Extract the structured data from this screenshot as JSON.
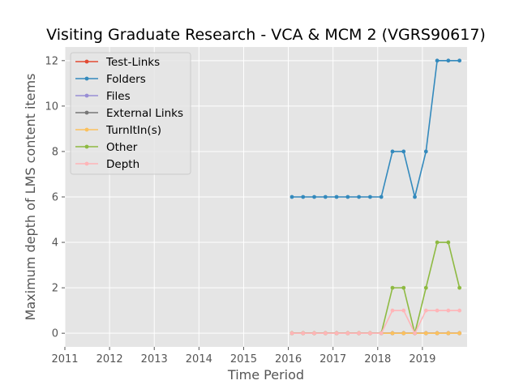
{
  "chart_data": {
    "type": "line",
    "title": "Visiting Graduate Research - VCA & MCM 2 (VGRS90617)",
    "xlabel": "Time Period",
    "ylabel": "Maximum depth of LMS content items",
    "xlim": [
      2011.0,
      2020.0
    ],
    "ylim": [
      -0.6,
      12.6
    ],
    "xticks": [
      2011,
      2012,
      2013,
      2014,
      2015,
      2016,
      2017,
      2018,
      2019
    ],
    "yticks": [
      0,
      2,
      4,
      6,
      8,
      10,
      12
    ],
    "grid": true,
    "legend_position": "top-left",
    "x": [
      2016.08,
      2016.33,
      2016.58,
      2016.83,
      2017.08,
      2017.33,
      2017.58,
      2017.83,
      2018.08,
      2018.33,
      2018.58,
      2018.83,
      2019.08,
      2019.33,
      2019.58,
      2019.83
    ],
    "series": [
      {
        "name": "Test-Links",
        "color": "#e24a33",
        "values": [
          0,
          0,
          0,
          0,
          0,
          0,
          0,
          0,
          0,
          0,
          0,
          0,
          0,
          0,
          0,
          0
        ]
      },
      {
        "name": "Folders",
        "color": "#348abd",
        "values": [
          6,
          6,
          6,
          6,
          6,
          6,
          6,
          6,
          6,
          8,
          8,
          6,
          8,
          12,
          12,
          12
        ]
      },
      {
        "name": "Files",
        "color": "#988ed5",
        "values": [
          0,
          0,
          0,
          0,
          0,
          0,
          0,
          0,
          0,
          0,
          0,
          0,
          0,
          0,
          0,
          0
        ]
      },
      {
        "name": "External Links",
        "color": "#777777",
        "values": [
          0,
          0,
          0,
          0,
          0,
          0,
          0,
          0,
          0,
          0,
          0,
          0,
          0,
          0,
          0,
          0
        ]
      },
      {
        "name": "TurnItIn(s)",
        "color": "#fbc15e",
        "values": [
          0,
          0,
          0,
          0,
          0,
          0,
          0,
          0,
          0,
          0,
          0,
          0,
          0,
          0,
          0,
          0
        ]
      },
      {
        "name": "Other",
        "color": "#8eba42",
        "values": [
          0,
          0,
          0,
          0,
          0,
          0,
          0,
          0,
          0,
          2,
          2,
          0,
          2,
          4,
          4,
          2
        ]
      },
      {
        "name": "Depth",
        "color": "#ffb5b8",
        "values": [
          0,
          0,
          0,
          0,
          0,
          0,
          0,
          0,
          0,
          1,
          1,
          0,
          1,
          1,
          1,
          1
        ]
      }
    ]
  }
}
